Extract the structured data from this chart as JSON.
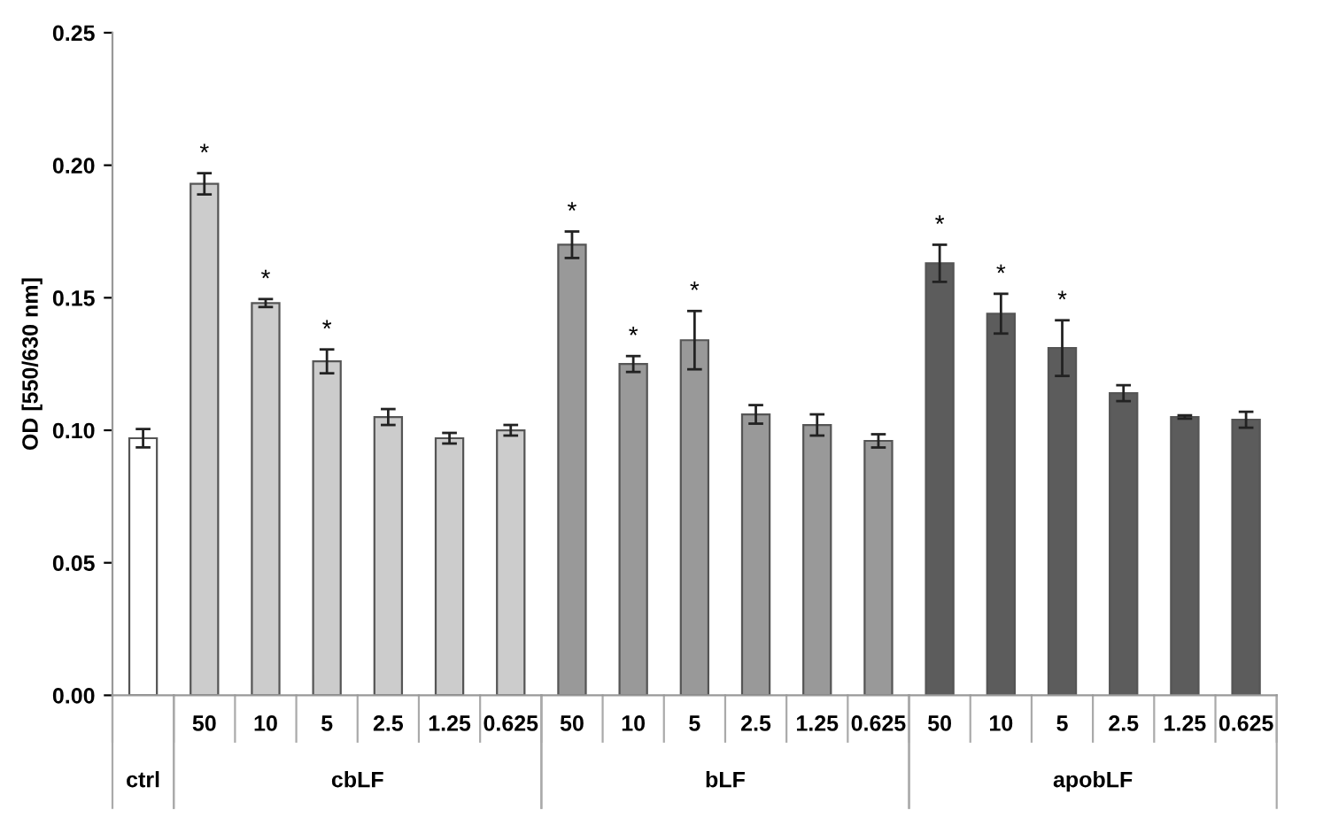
{
  "chart_data": {
    "type": "bar",
    "ylabel": "OD [550/630 nm]",
    "categories": [
      null,
      "50",
      "10",
      "5",
      "2.5",
      "1.25",
      "0.625",
      "50",
      "10",
      "5",
      "2.5",
      "1.25",
      "0.625",
      "50",
      "10",
      "5",
      "2.5",
      "1.25",
      "0.625"
    ],
    "values": [
      0.097,
      0.193,
      0.148,
      0.126,
      0.105,
      0.097,
      0.1,
      0.17,
      0.125,
      0.134,
      0.106,
      0.102,
      0.096,
      0.163,
      0.144,
      0.131,
      0.114,
      0.105,
      0.104
    ],
    "errors": [
      0.0035,
      0.004,
      0.0015,
      0.0045,
      0.003,
      0.002,
      0.002,
      0.005,
      0.003,
      0.011,
      0.0035,
      0.004,
      0.0025,
      0.007,
      0.0075,
      0.0105,
      0.003,
      0.0006,
      0.003
    ],
    "colors": [
      "#ffffff",
      "#cccccc",
      "#cccccc",
      "#cccccc",
      "#cccccc",
      "#cccccc",
      "#cccccc",
      "#999999",
      "#999999",
      "#999999",
      "#999999",
      "#999999",
      "#999999",
      "#5c5c5c",
      "#5c5c5c",
      "#5c5c5c",
      "#5c5c5c",
      "#5c5c5c",
      "#5c5c5c"
    ],
    "value_labels": [
      null,
      "*",
      "*",
      "*",
      null,
      null,
      null,
      "*",
      "*",
      "*",
      null,
      null,
      null,
      "*",
      "*",
      "*",
      null,
      null,
      null
    ],
    "annotations": [
      "ctrl",
      "cbLF",
      "bLF",
      "apobLF"
    ],
    "ylim": [
      0,
      0.25
    ],
    "yticks": [
      {
        "value": 0,
        "label": "0.00"
      },
      {
        "value": 0.05,
        "label": "0.05"
      },
      {
        "value": 0.1,
        "label": "0.10"
      },
      {
        "value": 0.15,
        "label": "0.15"
      },
      {
        "value": 0.2,
        "label": "0.20"
      },
      {
        "value": 0.25,
        "label": "0.25"
      }
    ],
    "grid": false,
    "legend": false
  }
}
